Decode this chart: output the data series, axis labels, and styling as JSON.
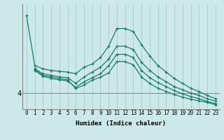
{
  "xlabel": "Humidex (Indice chaleur)",
  "ylabel": "",
  "background_color": "#cce8e8",
  "grid_color": "#aad0d0",
  "line_color": "#1a7a6e",
  "xlim": [
    -0.5,
    23.5
  ],
  "ylim": [
    3.0,
    9.5
  ],
  "hline_y": 4.0,
  "hline_color": "#b08080",
  "yticks": [
    4
  ],
  "ytick_labels": [
    "4"
  ],
  "xticks": [
    0,
    1,
    2,
    3,
    4,
    5,
    6,
    7,
    8,
    9,
    10,
    11,
    12,
    13,
    14,
    15,
    16,
    17,
    18,
    19,
    20,
    21,
    22,
    23
  ],
  "series": [
    [
      8.8,
      5.7,
      5.5,
      5.4,
      5.35,
      5.3,
      5.2,
      5.6,
      5.8,
      6.2,
      6.9,
      8.0,
      8.0,
      7.8,
      7.0,
      6.3,
      5.7,
      5.3,
      4.9,
      4.6,
      4.3,
      4.1,
      3.85,
      3.65
    ],
    [
      null,
      5.5,
      5.2,
      5.1,
      5.0,
      4.95,
      4.6,
      5.0,
      5.3,
      5.6,
      6.1,
      6.9,
      6.9,
      6.7,
      5.9,
      5.4,
      5.0,
      4.7,
      4.4,
      4.2,
      4.0,
      3.85,
      3.65,
      3.5
    ],
    [
      null,
      5.4,
      5.05,
      4.9,
      4.82,
      4.75,
      4.35,
      4.7,
      4.95,
      5.2,
      5.7,
      6.4,
      6.4,
      6.2,
      5.4,
      4.95,
      4.65,
      4.4,
      4.15,
      3.95,
      3.78,
      3.65,
      3.48,
      3.35
    ],
    [
      null,
      5.45,
      5.1,
      5.0,
      4.9,
      4.82,
      4.28,
      4.5,
      4.8,
      4.98,
      5.25,
      5.95,
      5.95,
      5.75,
      5.0,
      4.6,
      4.3,
      4.1,
      3.9,
      3.75,
      3.62,
      3.52,
      3.42,
      3.28
    ]
  ]
}
